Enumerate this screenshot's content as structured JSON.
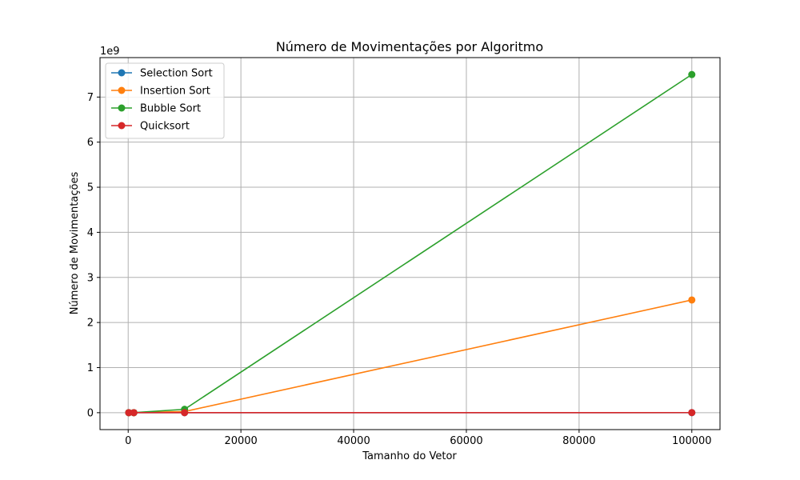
{
  "chart_data": {
    "type": "line",
    "title": "Número de Movimentações por Algoritmo",
    "xlabel": "Tamanho do Vetor",
    "ylabel": "Número de Movimentações",
    "y_offset_label": "1e9",
    "x": [
      100,
      1000,
      10000,
      100000
    ],
    "xlim": [
      -5000,
      105000
    ],
    "ylim": [
      -0.375,
      7.875
    ],
    "x_ticks": [
      0,
      20000,
      40000,
      60000,
      80000,
      100000
    ],
    "x_tick_labels": [
      "0",
      "20000",
      "40000",
      "60000",
      "80000",
      "100000"
    ],
    "y_ticks": [
      0,
      1,
      2,
      3,
      4,
      5,
      6,
      7
    ],
    "y_tick_labels": [
      "0",
      "1",
      "2",
      "3",
      "4",
      "5",
      "6",
      "7"
    ],
    "grid": true,
    "legend_position": "top-left",
    "series": [
      {
        "name": "Selection Sort",
        "color": "#1f77b4",
        "values": [
          1e-07,
          1e-06,
          1e-05,
          0.0001
        ]
      },
      {
        "name": "Insertion Sort",
        "color": "#ff7f0e",
        "values": [
          2.5e-06,
          0.00025,
          0.025,
          2.5
        ]
      },
      {
        "name": "Bubble Sort",
        "color": "#2ca02c",
        "values": [
          7.5e-06,
          0.00075,
          0.075,
          7.5
        ]
      },
      {
        "name": "Quicksort",
        "color": "#d62728",
        "values": [
          1e-06,
          1e-05,
          0.00015,
          0.002
        ]
      }
    ]
  }
}
